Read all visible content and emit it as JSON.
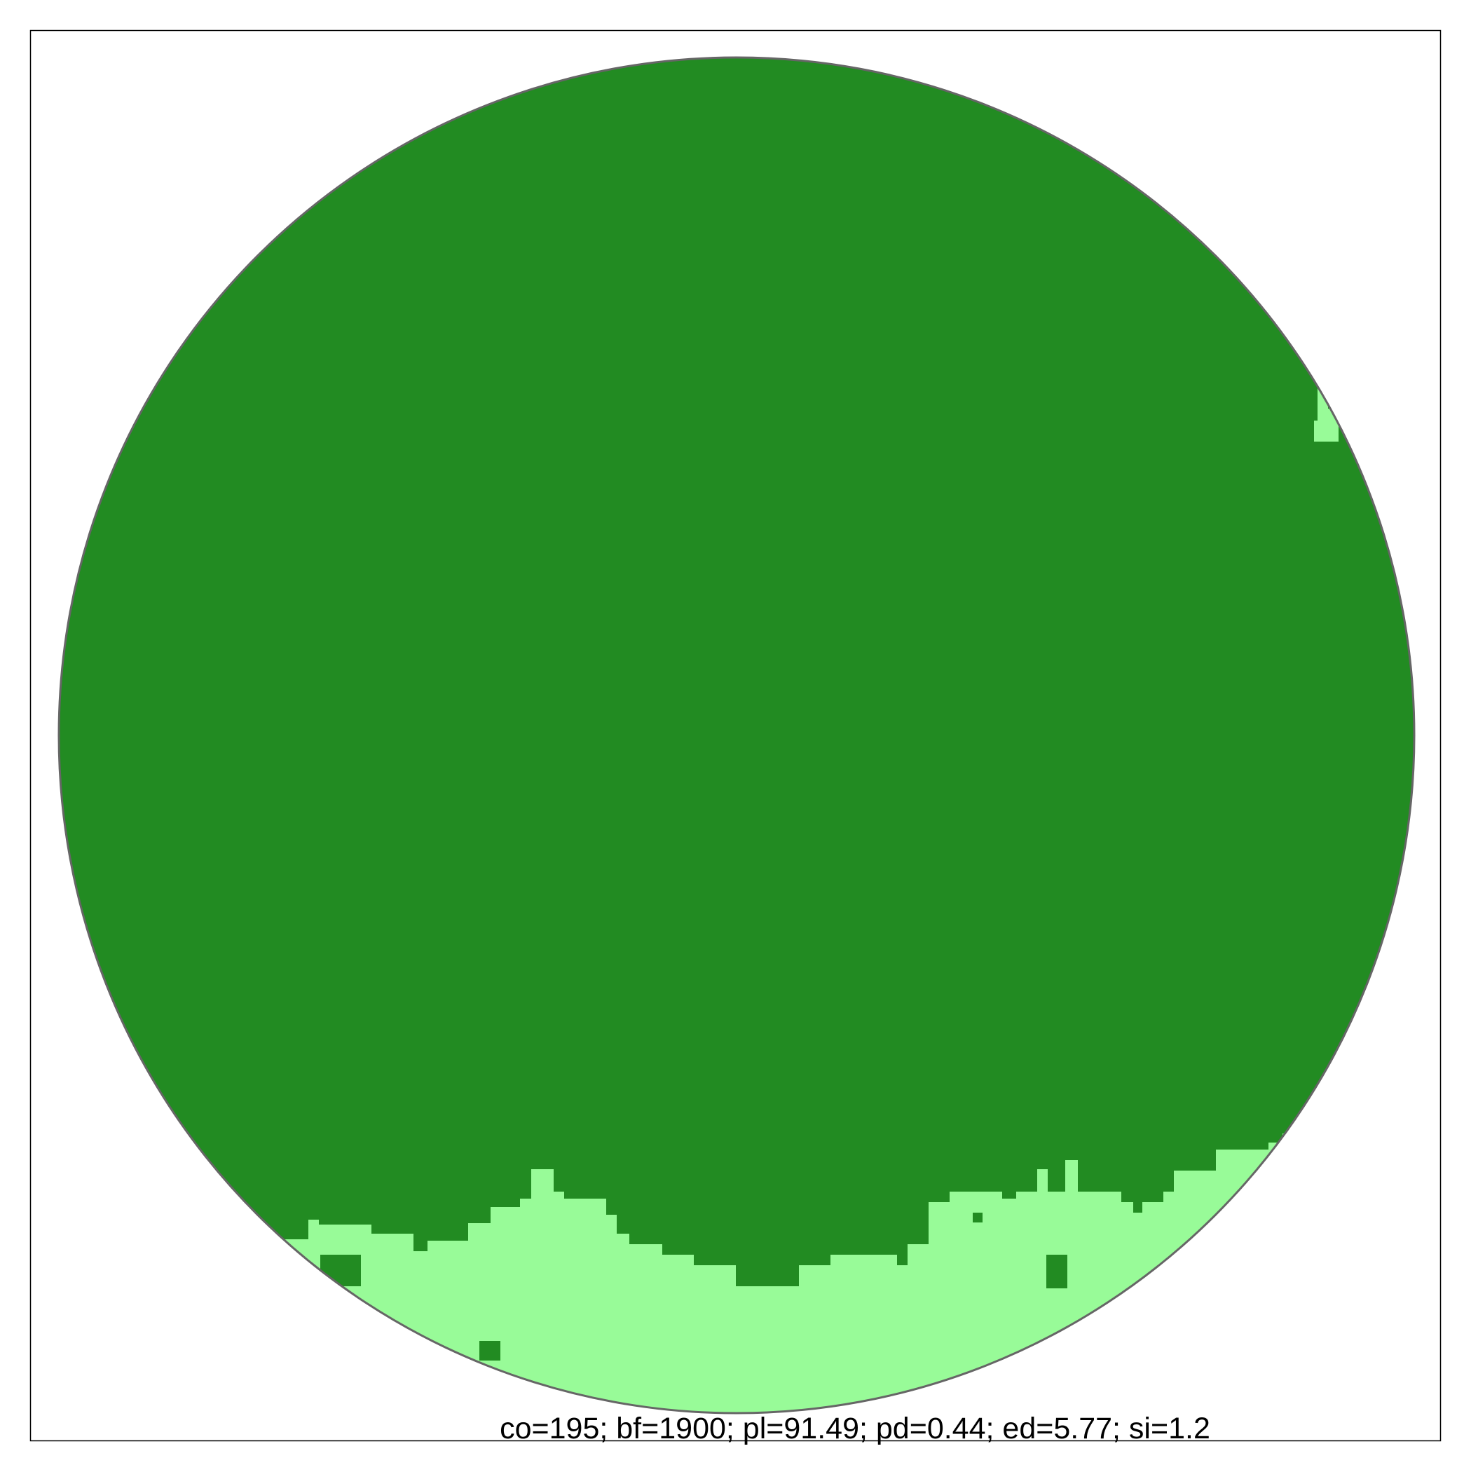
{
  "figure": {
    "caption": "co=195; bf=1900; pl=91.49; pd=0.44; ed=5.77; si=1.2"
  },
  "colors": {
    "forest": "#228B22",
    "open": "#98FB98",
    "frame": "#000000",
    "circle_outline": "#666666",
    "background": "#FFFFFF"
  },
  "legend": []
}
